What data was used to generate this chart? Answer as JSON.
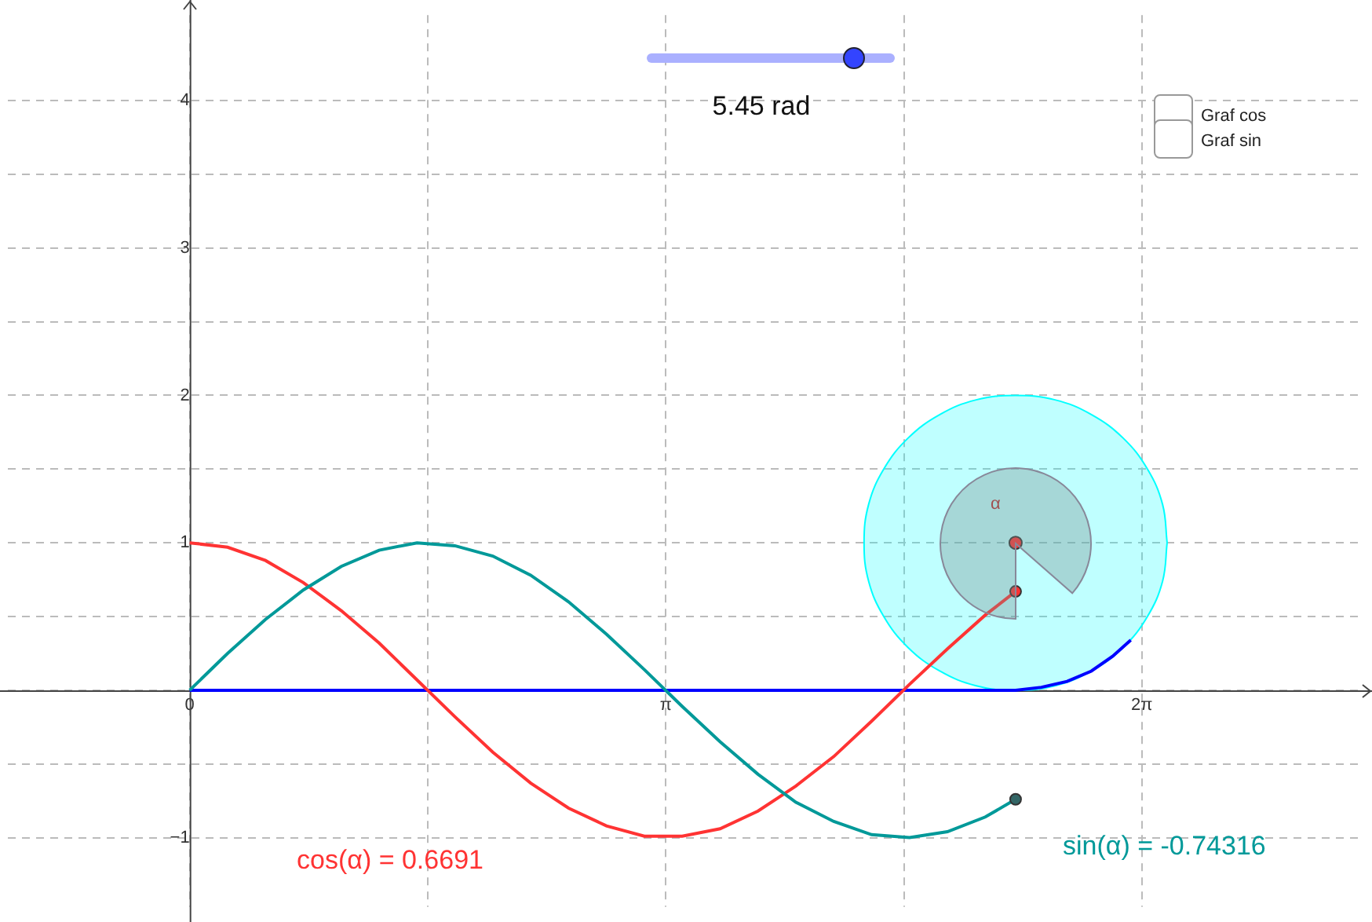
{
  "chart_data": {
    "type": "line",
    "xlim": [
      -1.2,
      7.75
    ],
    "ylim": [
      -1.47,
      4.58
    ],
    "xticks": [
      {
        "value": 0,
        "label": "0"
      },
      {
        "value": 1.5708,
        "label": null
      },
      {
        "value": 3.1416,
        "label": "π"
      },
      {
        "value": 4.7124,
        "label": null
      },
      {
        "value": 6.2832,
        "label": "2π"
      }
    ],
    "yticks": [
      {
        "value": -1,
        "label": "−1"
      },
      {
        "value": -0.5,
        "label": null
      },
      {
        "value": 0,
        "label": null
      },
      {
        "value": 0.5,
        "label": null
      },
      1,
      {
        "value": 1.5,
        "label": null
      },
      2,
      {
        "value": 2.5,
        "label": null
      },
      3,
      {
        "value": 3.5,
        "label": null
      },
      4
    ],
    "grid": true,
    "legend": false,
    "series": [
      {
        "type": "area",
        "color": "#00ffff",
        "x": [
          6.45,
          6.42,
          6.32,
          6.16,
          5.95,
          5.71,
          5.45,
          5.19,
          4.95,
          4.74,
          4.58,
          4.48,
          4.45,
          4.48,
          4.58,
          4.74,
          4.95,
          5.19,
          5.45,
          5.71,
          5.95,
          6.16,
          6.32,
          6.42,
          6.45
        ],
        "values": [
          1,
          1.26,
          1.5,
          1.71,
          1.87,
          1.97,
          2,
          1.97,
          1.87,
          1.71,
          1.5,
          1.26,
          1,
          0.74,
          0.5,
          0.29,
          0.13,
          0.03,
          0,
          0.03,
          0.13,
          0.29,
          0.5,
          0.74,
          1
        ]
      },
      {
        "color": "#0000ff",
        "x": [
          0,
          5.45,
          5.62,
          5.79,
          5.95,
          6.09,
          6.21
        ],
        "values": [
          0,
          0,
          0.02,
          0.06,
          0.13,
          0.23,
          0.34
        ]
      },
      {
        "color": "#ff3333",
        "x": [
          0,
          0.25,
          0.5,
          0.75,
          1,
          1.25,
          1.5,
          1.75,
          2,
          2.25,
          2.5,
          2.75,
          3,
          3.25,
          3.5,
          3.75,
          4,
          4.25,
          4.5,
          4.75,
          5,
          5.25,
          5.45
        ],
        "values": [
          1,
          0.97,
          0.88,
          0.73,
          0.54,
          0.32,
          0.07,
          -0.18,
          -0.42,
          -0.63,
          -0.8,
          -0.92,
          -0.99,
          -0.99,
          -0.94,
          -0.82,
          -0.65,
          -0.45,
          -0.21,
          0.04,
          0.28,
          0.51,
          0.67
        ]
      },
      {
        "color": "#009999",
        "x": [
          0,
          0.25,
          0.5,
          0.75,
          1,
          1.25,
          1.5,
          1.75,
          2,
          2.25,
          2.5,
          2.75,
          3,
          3.25,
          3.5,
          3.75,
          4,
          4.25,
          4.5,
          4.75,
          5,
          5.25,
          5.45
        ],
        "values": [
          0,
          0.25,
          0.48,
          0.68,
          0.84,
          0.95,
          1.0,
          0.98,
          0.91,
          0.78,
          0.6,
          0.38,
          0.14,
          -0.11,
          -0.35,
          -0.57,
          -0.76,
          -0.89,
          -0.98,
          -1.0,
          -0.96,
          -0.86,
          -0.74
        ]
      },
      {
        "type": "scatter",
        "color": "#ff3333",
        "x": [
          5.45
        ],
        "values": [
          1
        ]
      }
    ],
    "annotations": [
      "5.45 rad",
      "Graf cos",
      "Graf sin",
      "cos(α) = 0.6691",
      "sin(α) = -0.74316",
      "α"
    ]
  }
}
